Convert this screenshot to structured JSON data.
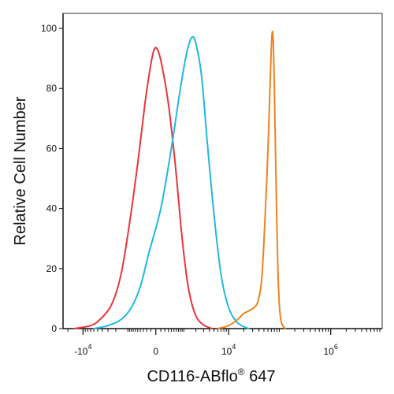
{
  "chart_data": {
    "type": "line",
    "xlabel": "CD116-ABflo",
    "xlabel_superscript": "®",
    "xlabel_suffix": " 647",
    "ylabel": "Relative Cell Number",
    "x_scale": "biexponential",
    "xlim": [
      -25000,
      10000000
    ],
    "ylim": [
      0,
      105
    ],
    "y_ticks": [
      {
        "value": 0,
        "label": "0"
      },
      {
        "value": 20,
        "label": "20"
      },
      {
        "value": 40,
        "label": "40"
      },
      {
        "value": 60,
        "label": "60"
      },
      {
        "value": 80,
        "label": "80"
      },
      {
        "value": 100,
        "label": "100"
      }
    ],
    "x_ticks": [
      {
        "value": -10000,
        "base": "-10",
        "exp": "4"
      },
      {
        "value": 0,
        "base": "0",
        "exp": ""
      },
      {
        "value": 10000,
        "base": "10",
        "exp": "4"
      },
      {
        "value": 1000000,
        "base": "10",
        "exp": "6"
      }
    ],
    "grid": false,
    "series": [
      {
        "color": "#e8343b",
        "points": [
          [
            -15000,
            0
          ],
          [
            -7000,
            1
          ],
          [
            -4500,
            3
          ],
          [
            -2500,
            8
          ],
          [
            -1500,
            18
          ],
          [
            -900,
            35
          ],
          [
            -500,
            55
          ],
          [
            -250,
            75
          ],
          [
            -100,
            88
          ],
          [
            -30,
            93
          ],
          [
            30,
            93
          ],
          [
            120,
            88
          ],
          [
            300,
            75
          ],
          [
            550,
            55
          ],
          [
            900,
            30
          ],
          [
            1300,
            14
          ],
          [
            1900,
            5
          ],
          [
            2800,
            1.5
          ],
          [
            4500,
            0
          ]
        ]
      },
      {
        "color": "#22b8e0",
        "points": [
          [
            -6000,
            0
          ],
          [
            -3000,
            1
          ],
          [
            -1500,
            3
          ],
          [
            -800,
            7
          ],
          [
            -400,
            14
          ],
          [
            -150,
            25
          ],
          [
            100,
            40
          ],
          [
            400,
            60
          ],
          [
            800,
            80
          ],
          [
            1200,
            92
          ],
          [
            1600,
            97
          ],
          [
            2000,
            95
          ],
          [
            2700,
            84
          ],
          [
            3600,
            62
          ],
          [
            5000,
            38
          ],
          [
            7000,
            18
          ],
          [
            10000,
            7
          ],
          [
            15000,
            2
          ],
          [
            25000,
            0
          ]
        ]
      },
      {
        "color": "#f0821e",
        "points": [
          [
            6000,
            0
          ],
          [
            10000,
            1
          ],
          [
            15000,
            3
          ],
          [
            20000,
            5
          ],
          [
            26000,
            6
          ],
          [
            32000,
            7
          ],
          [
            38000,
            9
          ],
          [
            45000,
            16
          ],
          [
            52000,
            35
          ],
          [
            60000,
            60
          ],
          [
            67000,
            85
          ],
          [
            72000,
            98
          ],
          [
            76000,
            96
          ],
          [
            80000,
            80
          ],
          [
            86000,
            50
          ],
          [
            93000,
            22
          ],
          [
            100000,
            8
          ],
          [
            110000,
            2
          ],
          [
            130000,
            0
          ]
        ]
      }
    ]
  }
}
